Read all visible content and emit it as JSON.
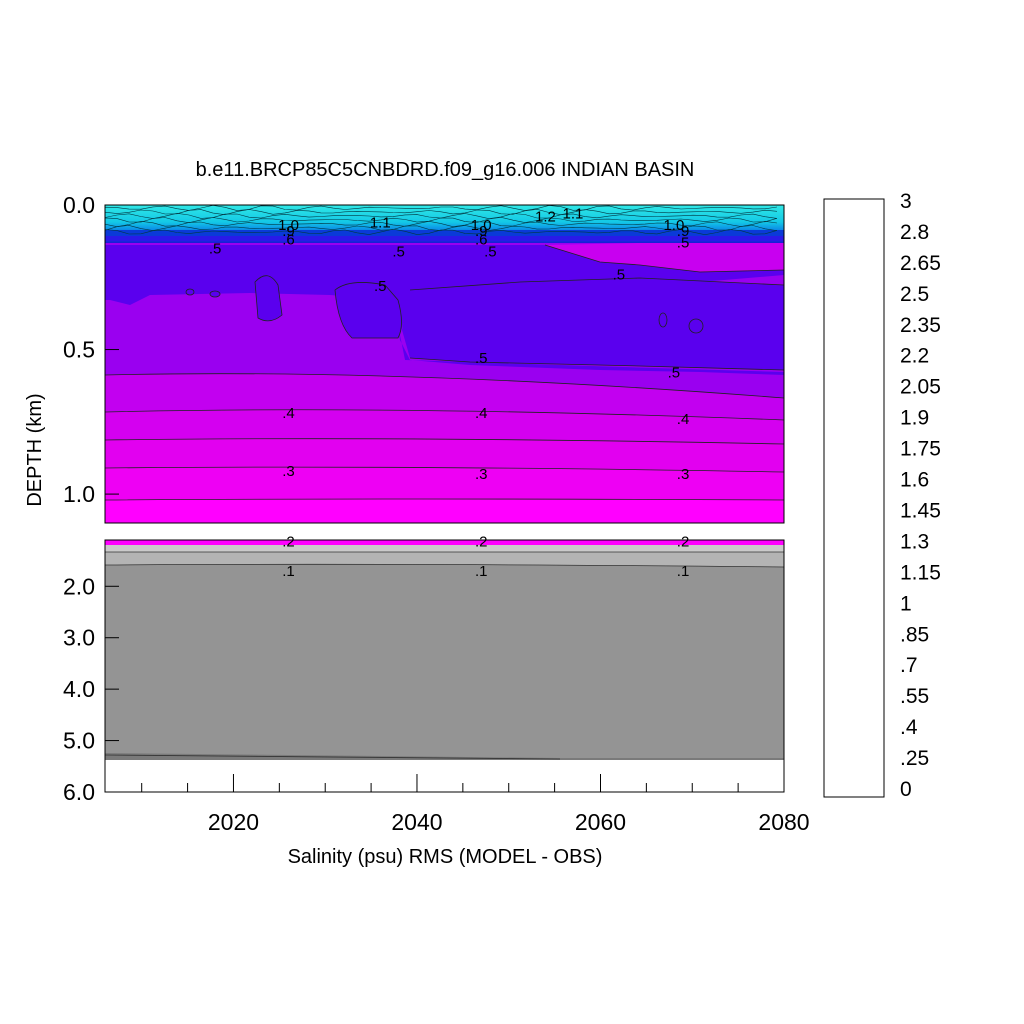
{
  "chart_data": {
    "type": "heatmap",
    "title": "b.e11.BRCP85C5CNBDRD.f09_g16.006 INDIAN BASIN",
    "xlabel": "Salinity (psu) RMS (MODEL - OBS)",
    "ylabel": "DEPTH (km)",
    "x_ticks": [
      "2020",
      "2040",
      "2060",
      "2080"
    ],
    "x_range": [
      2006,
      2080
    ],
    "y_ticks_upper": [
      "0.0",
      "0.5",
      "1.0"
    ],
    "y_range_upper": [
      0.0,
      1.1
    ],
    "y_ticks_lower": [
      "2.0",
      "3.0",
      "4.0",
      "5.0",
      "6.0"
    ],
    "y_range_lower": [
      1.1,
      6.0
    ],
    "colorbar": {
      "labels": [
        "3",
        "2.8",
        "2.65",
        "2.5",
        "2.35",
        "2.2",
        "2.05",
        "1.9",
        "1.75",
        "1.6",
        "1.45",
        "1.3",
        "1.15",
        "1",
        ".85",
        ".7",
        ".55",
        ".4",
        ".25",
        "0"
      ],
      "levels": 40,
      "range": [
        0,
        3
      ]
    },
    "contour_labels": [
      {
        "text": "1.1",
        "x": 2036,
        "depth": 0.06
      },
      {
        "text": "1.2",
        "x": 2054,
        "depth": 0.04
      },
      {
        "text": "1.1",
        "x": 2057,
        "depth": 0.03
      },
      {
        "text": "1.0",
        "x": 2026,
        "depth": 0.07
      },
      {
        "text": ".9",
        "x": 2026,
        "depth": 0.09
      },
      {
        "text": ".6",
        "x": 2026,
        "depth": 0.12
      },
      {
        "text": "1.0",
        "x": 2047,
        "depth": 0.07
      },
      {
        "text": ".9",
        "x": 2047,
        "depth": 0.09
      },
      {
        "text": ".6",
        "x": 2047,
        "depth": 0.12
      },
      {
        "text": "1.0",
        "x": 2068,
        "depth": 0.07
      },
      {
        "text": ".9",
        "x": 2069,
        "depth": 0.09
      },
      {
        "text": ".5",
        "x": 2069,
        "depth": 0.13
      },
      {
        "text": ".5",
        "x": 2018,
        "depth": 0.15
      },
      {
        "text": ".5",
        "x": 2038,
        "depth": 0.16
      },
      {
        "text": ".5",
        "x": 2048,
        "depth": 0.16
      },
      {
        "text": ".5",
        "x": 2062,
        "depth": 0.24
      },
      {
        "text": ".5",
        "x": 2036,
        "depth": 0.28
      },
      {
        "text": ".5",
        "x": 2047,
        "depth": 0.53
      },
      {
        "text": ".5",
        "x": 2068,
        "depth": 0.58
      },
      {
        "text": ".4",
        "x": 2026,
        "depth": 0.72
      },
      {
        "text": ".4",
        "x": 2047,
        "depth": 0.72
      },
      {
        "text": ".4",
        "x": 2069,
        "depth": 0.74
      },
      {
        "text": ".3",
        "x": 2026,
        "depth": 0.92
      },
      {
        "text": ".3",
        "x": 2047,
        "depth": 0.93
      },
      {
        "text": ".3",
        "x": 2069,
        "depth": 0.93
      },
      {
        "text": ".2",
        "x": 2026,
        "depth": 1.13
      },
      {
        "text": ".2",
        "x": 2047,
        "depth": 1.13
      },
      {
        "text": ".2",
        "x": 2069,
        "depth": 1.13
      },
      {
        "text": ".1",
        "x": 2026,
        "depth": 1.7
      },
      {
        "text": ".1",
        "x": 2047,
        "depth": 1.7
      },
      {
        "text": ".1",
        "x": 2069,
        "depth": 1.7
      }
    ],
    "depth_bands": [
      {
        "depth_top": 0.0,
        "depth_bottom": 0.1,
        "value": 1.1
      },
      {
        "depth_top": 0.1,
        "depth_bottom": 0.15,
        "value": 0.75
      },
      {
        "depth_top": 0.15,
        "depth_bottom": 0.6,
        "value": 0.52
      },
      {
        "depth_top": 0.6,
        "depth_bottom": 0.72,
        "value": 0.43
      },
      {
        "depth_top": 0.72,
        "depth_bottom": 0.82,
        "value": 0.38
      },
      {
        "depth_top": 0.82,
        "depth_bottom": 0.92,
        "value": 0.33
      },
      {
        "depth_top": 0.92,
        "depth_bottom": 1.02,
        "value": 0.29
      },
      {
        "depth_top": 1.02,
        "depth_bottom": 1.1,
        "value": 0.25
      },
      {
        "depth_top": 1.1,
        "depth_bottom": 1.2,
        "value": 0.22
      },
      {
        "depth_top": 1.2,
        "depth_bottom": 1.65,
        "value": 0.15
      },
      {
        "depth_top": 1.65,
        "depth_bottom": 5.35,
        "value": 0.07
      }
    ]
  },
  "colors": {
    "gray_fill": "#949494",
    "light_gray": "#cbcbcb",
    "mid_gray": "#b4b4b4",
    "magenta": "#ff00ff",
    "violet": "#9a00f0",
    "blue_violet": "#5a00ee",
    "cyan": "#28e6e6"
  }
}
